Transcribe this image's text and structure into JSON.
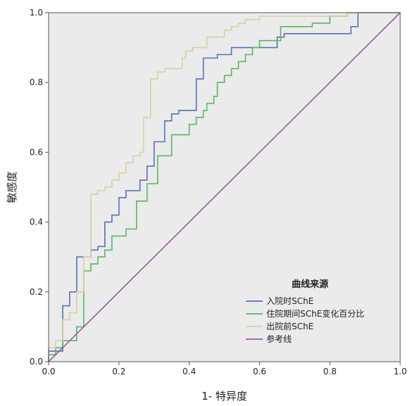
{
  "chart_data": {
    "type": "line",
    "title": "",
    "xlabel": "1- 特异度",
    "ylabel": "敏感度",
    "xlim": [
      0,
      1
    ],
    "ylim": [
      0,
      1
    ],
    "xticks": [
      "0.0",
      "0.2",
      "0.4",
      "0.6",
      "0.8",
      "1.0"
    ],
    "yticks": [
      "0.0",
      "0.2",
      "0.4",
      "0.6",
      "0.8",
      "1.0"
    ],
    "grid": false,
    "legend_title": "曲线来源",
    "legend_placement": "bottom-right",
    "background_color": "#ebebeb",
    "series": [
      {
        "name": "入院时SChE",
        "color": "#5470b8",
        "x": [
          0,
          0,
          0.04,
          0.04,
          0.06,
          0.06,
          0.08,
          0.08,
          0.12,
          0.12,
          0.14,
          0.14,
          0.16,
          0.16,
          0.18,
          0.18,
          0.2,
          0.2,
          0.22,
          0.22,
          0.26,
          0.26,
          0.28,
          0.28,
          0.3,
          0.3,
          0.33,
          0.33,
          0.35,
          0.35,
          0.37,
          0.37,
          0.42,
          0.42,
          0.44,
          0.44,
          0.48,
          0.48,
          0.52,
          0.52,
          0.65,
          0.65,
          0.67,
          0.67,
          0.86,
          0.86,
          0.88,
          0.88,
          1.0
        ],
        "y": [
          0,
          0.03,
          0.03,
          0.16,
          0.16,
          0.2,
          0.2,
          0.3,
          0.3,
          0.32,
          0.32,
          0.33,
          0.33,
          0.4,
          0.4,
          0.42,
          0.42,
          0.47,
          0.47,
          0.49,
          0.49,
          0.52,
          0.52,
          0.56,
          0.56,
          0.63,
          0.63,
          0.69,
          0.69,
          0.71,
          0.71,
          0.72,
          0.72,
          0.81,
          0.81,
          0.87,
          0.87,
          0.88,
          0.88,
          0.9,
          0.9,
          0.93,
          0.93,
          0.94,
          0.94,
          0.96,
          0.96,
          1.0,
          1.0
        ]
      },
      {
        "name": "住院期间SChE变化百分比",
        "color": "#56b861",
        "x": [
          0,
          0,
          0.02,
          0.02,
          0.04,
          0.04,
          0.08,
          0.08,
          0.1,
          0.1,
          0.12,
          0.12,
          0.14,
          0.14,
          0.16,
          0.16,
          0.18,
          0.18,
          0.22,
          0.22,
          0.25,
          0.25,
          0.28,
          0.28,
          0.31,
          0.31,
          0.35,
          0.35,
          0.4,
          0.4,
          0.42,
          0.42,
          0.44,
          0.44,
          0.45,
          0.45,
          0.47,
          0.47,
          0.48,
          0.48,
          0.5,
          0.5,
          0.52,
          0.52,
          0.54,
          0.54,
          0.56,
          0.56,
          0.58,
          0.58,
          0.6,
          0.6,
          0.66,
          0.66,
          0.75,
          0.75,
          0.8,
          0.8,
          0.85,
          0.85,
          1.0
        ],
        "y": [
          0,
          0.02,
          0.02,
          0.04,
          0.04,
          0.06,
          0.06,
          0.1,
          0.1,
          0.26,
          0.26,
          0.28,
          0.28,
          0.3,
          0.3,
          0.32,
          0.32,
          0.36,
          0.36,
          0.38,
          0.38,
          0.46,
          0.46,
          0.51,
          0.51,
          0.59,
          0.59,
          0.65,
          0.65,
          0.68,
          0.68,
          0.7,
          0.7,
          0.72,
          0.72,
          0.74,
          0.74,
          0.76,
          0.76,
          0.8,
          0.8,
          0.82,
          0.82,
          0.84,
          0.84,
          0.86,
          0.86,
          0.88,
          0.88,
          0.9,
          0.9,
          0.92,
          0.92,
          0.96,
          0.96,
          0.97,
          0.97,
          0.99,
          0.99,
          1.0,
          1.0
        ]
      },
      {
        "name": "出院前SChE",
        "color": "#d8cfa0",
        "x": [
          0,
          0,
          0.02,
          0.02,
          0.04,
          0.04,
          0.06,
          0.06,
          0.08,
          0.08,
          0.1,
          0.1,
          0.12,
          0.12,
          0.14,
          0.14,
          0.16,
          0.16,
          0.18,
          0.18,
          0.2,
          0.2,
          0.22,
          0.22,
          0.24,
          0.24,
          0.26,
          0.26,
          0.27,
          0.27,
          0.29,
          0.29,
          0.31,
          0.31,
          0.33,
          0.33,
          0.38,
          0.38,
          0.39,
          0.39,
          0.41,
          0.41,
          0.45,
          0.45,
          0.5,
          0.5,
          0.52,
          0.52,
          0.54,
          0.54,
          0.56,
          0.56,
          0.6,
          0.6,
          0.85,
          0.85,
          1.0
        ],
        "y": [
          0,
          0.04,
          0.04,
          0.06,
          0.06,
          0.12,
          0.12,
          0.14,
          0.14,
          0.2,
          0.2,
          0.3,
          0.3,
          0.48,
          0.48,
          0.49,
          0.49,
          0.5,
          0.5,
          0.52,
          0.52,
          0.54,
          0.54,
          0.57,
          0.57,
          0.59,
          0.59,
          0.6,
          0.6,
          0.7,
          0.7,
          0.81,
          0.81,
          0.83,
          0.83,
          0.84,
          0.84,
          0.87,
          0.87,
          0.89,
          0.89,
          0.9,
          0.9,
          0.93,
          0.93,
          0.95,
          0.95,
          0.96,
          0.96,
          0.97,
          0.97,
          0.98,
          0.98,
          0.99,
          0.99,
          1.0,
          1.0
        ]
      },
      {
        "name": "参考线",
        "color": "#9b59a8",
        "x": [
          0,
          1
        ],
        "y": [
          0,
          1
        ]
      }
    ]
  }
}
